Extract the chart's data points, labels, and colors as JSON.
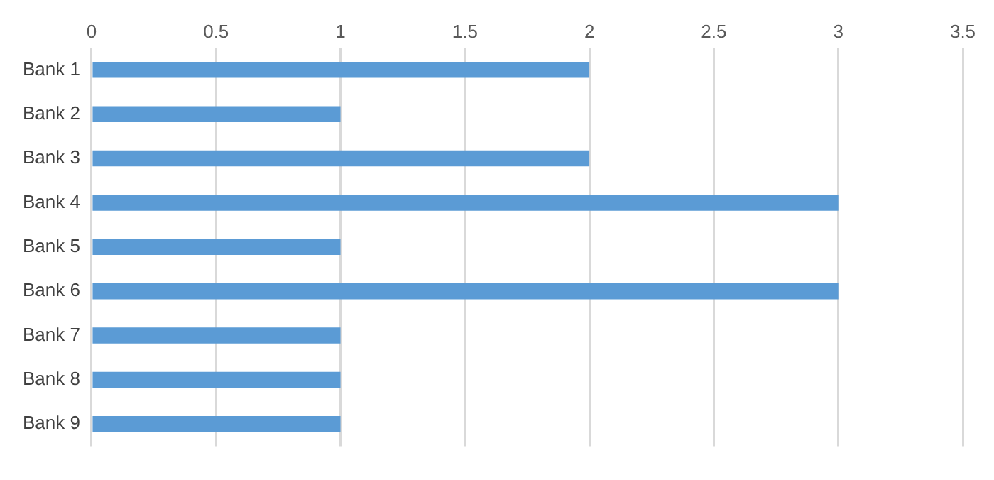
{
  "chart_data": {
    "type": "bar",
    "orientation": "horizontal",
    "categories": [
      "Bank 1",
      "Bank 2",
      "Bank 3",
      "Bank 4",
      "Bank 5",
      "Bank 6",
      "Bank 7",
      "Bank 8",
      "Bank 9"
    ],
    "series": [
      {
        "color": "#5b9bd5",
        "values": [
          2,
          1,
          2,
          3,
          1,
          3,
          1,
          1,
          1
        ]
      }
    ],
    "xlim": [
      0,
      3.5
    ],
    "xticks": [
      0,
      0.5,
      1,
      1.5,
      2,
      2.5,
      3,
      3.5
    ],
    "grid": "x",
    "legend": false
  }
}
